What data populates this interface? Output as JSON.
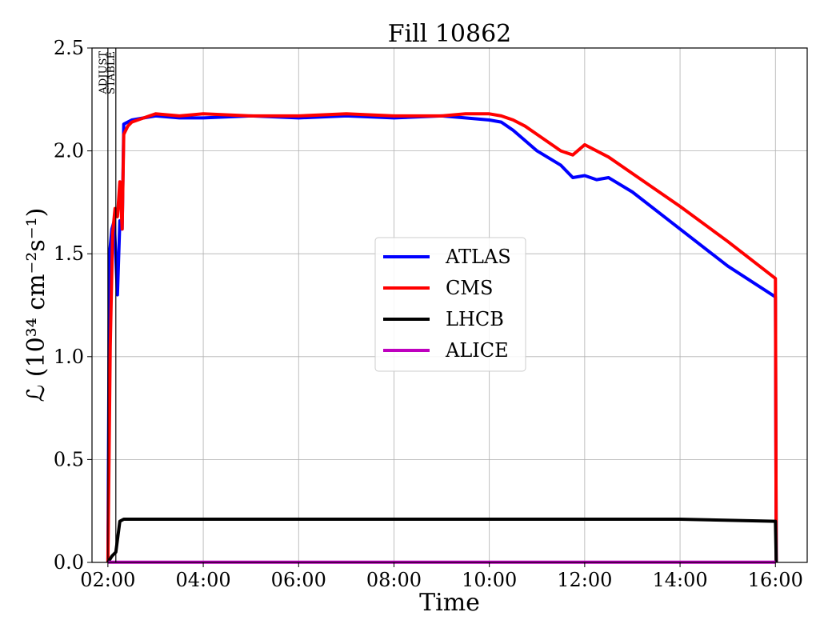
{
  "chart_data": {
    "type": "line",
    "title": "Fill 10862",
    "xlabel": "Time",
    "ylabel": "ℒ (10³⁴ cm⁻²s⁻¹)",
    "xlim": [
      "01:40",
      "16:40"
    ],
    "ylim": [
      0,
      2.5
    ],
    "grid": true,
    "legend_position": "center-right",
    "x_ticks": [
      "02:00",
      "04:00",
      "06:00",
      "08:00",
      "10:00",
      "12:00",
      "14:00",
      "16:00"
    ],
    "y_ticks": [
      "0.0",
      "0.5",
      "1.0",
      "1.5",
      "2.0",
      "2.5"
    ],
    "markers": [
      {
        "label": "ADJUST",
        "x": "02:00"
      },
      {
        "label": "STABLE",
        "x": "02:10"
      }
    ],
    "series": [
      {
        "name": "ATLAS",
        "color": "#0000ff",
        "x": [
          "02:00",
          "02:02",
          "02:05",
          "02:08",
          "02:12",
          "02:15",
          "02:18",
          "02:20",
          "02:30",
          "02:45",
          "03:00",
          "03:30",
          "04:00",
          "05:00",
          "06:00",
          "07:00",
          "08:00",
          "09:00",
          "09:30",
          "10:00",
          "10:15",
          "10:30",
          "11:00",
          "11:30",
          "11:45",
          "12:00",
          "12:15",
          "12:30",
          "13:00",
          "14:00",
          "15:00",
          "16:00",
          "16:01"
        ],
        "y": [
          0,
          1.5,
          1.62,
          1.66,
          1.3,
          1.66,
          1.62,
          2.13,
          2.15,
          2.16,
          2.17,
          2.16,
          2.16,
          2.17,
          2.16,
          2.17,
          2.16,
          2.17,
          2.16,
          2.15,
          2.14,
          2.1,
          2.0,
          1.93,
          1.87,
          1.88,
          1.86,
          1.87,
          1.8,
          1.62,
          1.44,
          1.29,
          0
        ]
      },
      {
        "name": "CMS",
        "color": "#ff0000",
        "x": [
          "02:00",
          "02:03",
          "02:06",
          "02:09",
          "02:12",
          "02:15",
          "02:18",
          "02:20",
          "02:25",
          "02:30",
          "02:45",
          "03:00",
          "03:30",
          "04:00",
          "05:00",
          "06:00",
          "07:00",
          "08:00",
          "09:00",
          "09:30",
          "10:00",
          "10:15",
          "10:30",
          "10:45",
          "11:00",
          "11:30",
          "11:45",
          "12:00",
          "12:30",
          "13:00",
          "14:00",
          "15:00",
          "16:00",
          "16:01"
        ],
        "y": [
          0,
          1.05,
          1.6,
          1.72,
          1.68,
          1.85,
          1.62,
          2.08,
          2.12,
          2.14,
          2.16,
          2.18,
          2.17,
          2.18,
          2.17,
          2.17,
          2.18,
          2.17,
          2.17,
          2.18,
          2.18,
          2.17,
          2.15,
          2.12,
          2.08,
          2.0,
          1.98,
          2.03,
          1.97,
          1.89,
          1.73,
          1.56,
          1.38,
          0
        ]
      },
      {
        "name": "LHCB",
        "color": "#000000",
        "x": [
          "02:00",
          "02:05",
          "02:10",
          "02:15",
          "02:20",
          "04:00",
          "06:00",
          "08:00",
          "10:00",
          "12:00",
          "14:00",
          "16:00",
          "16:01"
        ],
        "y": [
          0,
          0.03,
          0.05,
          0.2,
          0.21,
          0.21,
          0.21,
          0.21,
          0.21,
          0.21,
          0.21,
          0.2,
          0
        ]
      },
      {
        "name": "ALICE",
        "color": "#bf00bf",
        "x": [
          "02:00",
          "16:00"
        ],
        "y": [
          0.001,
          0.001
        ]
      }
    ]
  }
}
